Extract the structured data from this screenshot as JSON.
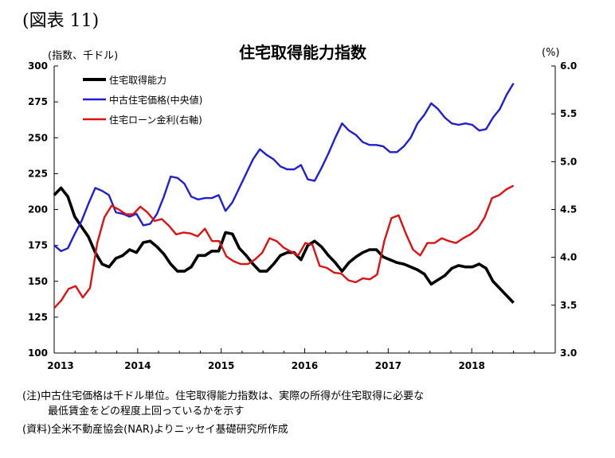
{
  "figure_label": "(図表 11)",
  "footnotes": {
    "note_line1": "(注)中古住宅価格は千ドル単位。住宅取得能力指数は、実際の所得が住宅取得に必要な",
    "note_line2": "最低賃金をどの程度上回っているかを示す",
    "source": "(資料)全米不動産協会(NAR)よりニッセイ基礎研究所作成"
  },
  "chart_data": {
    "type": "line",
    "title": "住宅取得能力指数",
    "left_axis_unit": "(指数、千ドル)",
    "right_axis_unit": "(%)",
    "left_ylim": [
      100,
      300
    ],
    "left_yticks": [
      "100",
      "125",
      "150",
      "175",
      "200",
      "225",
      "250",
      "275",
      "300"
    ],
    "right_ylim": [
      3.0,
      6.0
    ],
    "right_yticks": [
      "3.0",
      "3.5",
      "4.0",
      "4.5",
      "5.0",
      "5.5",
      "6.0"
    ],
    "x_start_year": 2013,
    "x_tick_labels": [
      "2013",
      "2014",
      "2015",
      "2016",
      "2017",
      "2018"
    ],
    "x_months": 72,
    "grid": false,
    "legend_position": "top-left",
    "series": [
      {
        "name": "住宅取得能力",
        "axis": "left",
        "color": "#000000",
        "values": [
          210,
          215,
          209,
          195,
          188,
          181,
          170,
          162,
          160,
          166,
          168,
          172,
          170,
          177,
          178,
          174,
          169,
          162,
          157,
          157,
          160,
          168,
          168,
          171,
          171,
          184,
          183,
          173,
          168,
          162,
          157,
          157,
          162,
          168,
          170,
          170,
          165,
          175,
          178,
          174,
          168,
          163,
          157,
          163,
          167,
          170,
          172,
          172,
          167,
          165,
          163,
          162,
          160,
          158,
          155,
          148,
          151,
          154,
          159,
          161,
          160,
          160,
          162,
          159,
          150,
          145,
          140,
          135
        ]
      },
      {
        "name": "中古住宅価格(中央値)",
        "axis": "left",
        "color": "#1f1fd2",
        "values": [
          175,
          171,
          173,
          183,
          192,
          204,
          215,
          213,
          210,
          198,
          197,
          195,
          197,
          189,
          190,
          197,
          209,
          223,
          222,
          218,
          209,
          207,
          208,
          208,
          210,
          199,
          205,
          215,
          225,
          235,
          242,
          238,
          235,
          230,
          228,
          228,
          231,
          221,
          220,
          229,
          239,
          250,
          260,
          255,
          252,
          247,
          245,
          245,
          244,
          240,
          240,
          244,
          250,
          260,
          266,
          274,
          270,
          264,
          260,
          259,
          260,
          259,
          255,
          256,
          264,
          270,
          280,
          288
        ]
      },
      {
        "name": "住宅ローン金利(右軸)",
        "axis": "right",
        "color": "#dd1111",
        "values": [
          3.47,
          3.55,
          3.67,
          3.7,
          3.58,
          3.68,
          4.15,
          4.42,
          4.54,
          4.5,
          4.45,
          4.45,
          4.53,
          4.47,
          4.38,
          4.4,
          4.33,
          4.24,
          4.26,
          4.25,
          4.22,
          4.3,
          4.17,
          4.17,
          4.01,
          3.96,
          3.93,
          3.93,
          3.98,
          4.05,
          4.2,
          4.17,
          4.1,
          4.06,
          4.02,
          4.15,
          4.13,
          3.91,
          3.89,
          3.84,
          3.83,
          3.76,
          3.74,
          3.78,
          3.77,
          3.82,
          4.17,
          4.41,
          4.44,
          4.25,
          4.08,
          4.02,
          4.15,
          4.15,
          4.2,
          4.17,
          4.15,
          4.2,
          4.24,
          4.3,
          4.42,
          4.62,
          4.65,
          4.71,
          4.75
        ]
      }
    ]
  }
}
